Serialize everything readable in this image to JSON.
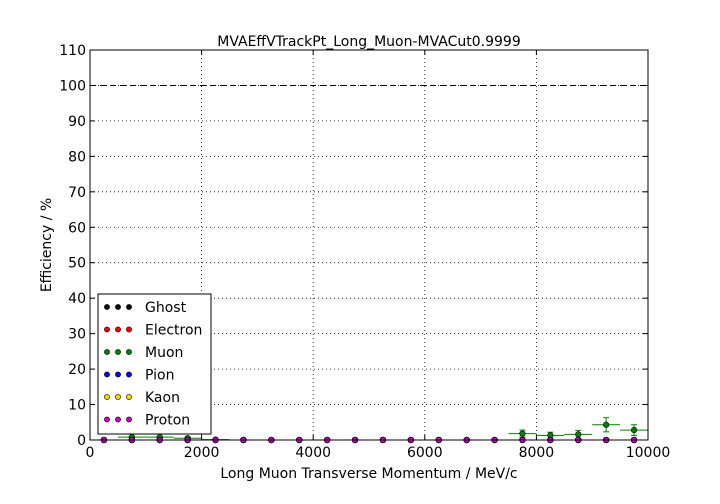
{
  "chart_data": {
    "type": "scatter",
    "title": "MVAEffVTrackPt_Long_Muon-MVACut0.9999",
    "xlabel": "Long Muon Transverse Momentum / MeV/c",
    "ylabel": "Efficiency / %",
    "xlim": [
      0,
      10000
    ],
    "ylim": [
      0,
      110
    ],
    "xticks": [
      0,
      2000,
      4000,
      6000,
      8000,
      10000
    ],
    "yticks": [
      0,
      10,
      20,
      30,
      40,
      50,
      60,
      70,
      80,
      90,
      100,
      110
    ],
    "grid": true,
    "reference_line": 100,
    "legend_position": "lower-left",
    "x": [
      250,
      750,
      1250,
      1750,
      2250,
      2750,
      3250,
      3750,
      4250,
      4750,
      5250,
      5750,
      6250,
      6750,
      7250,
      7750,
      8250,
      8750,
      9250,
      9750
    ],
    "x_error": 250,
    "series": [
      {
        "name": "Ghost",
        "color": "#000000",
        "values": [
          0,
          0,
          0,
          0,
          0,
          0,
          0,
          0,
          0,
          0,
          0,
          0,
          0,
          0,
          0,
          0,
          0,
          0,
          0,
          0
        ]
      },
      {
        "name": "Electron",
        "color": "#ff0000",
        "values": [
          0,
          0,
          0,
          0,
          0,
          0,
          0,
          0,
          0,
          0,
          0,
          0,
          0,
          0,
          0,
          0,
          0,
          0,
          0,
          0
        ]
      },
      {
        "name": "Muon",
        "color": "#008000",
        "values": [
          0,
          0.8,
          0.8,
          0.5,
          0.1,
          0,
          0,
          0,
          0,
          0,
          0,
          0,
          0,
          0,
          0,
          1.8,
          1.3,
          1.6,
          4.3,
          2.8
        ],
        "errors": [
          0,
          0.3,
          0.3,
          0.3,
          0.1,
          0,
          0,
          0,
          0,
          0,
          0,
          0,
          0,
          0,
          0,
          1.0,
          0.9,
          1.1,
          2.0,
          1.5
        ]
      },
      {
        "name": "Pion",
        "color": "#0000ff",
        "values": [
          0,
          0,
          0,
          0,
          0,
          0,
          0,
          0,
          0,
          0,
          0,
          0,
          0,
          0,
          0,
          0,
          0,
          0,
          0,
          0
        ]
      },
      {
        "name": "Kaon",
        "color": "#ffd700",
        "values": [
          0,
          0,
          0,
          0,
          0,
          0,
          0,
          0,
          0,
          0,
          0,
          0,
          0,
          0,
          0,
          0,
          0,
          0,
          0,
          0
        ]
      },
      {
        "name": "Proton",
        "color": "#cc00cc",
        "values": [
          0,
          0,
          0,
          0,
          0,
          0,
          0,
          0,
          0,
          0,
          0,
          0,
          0,
          0,
          0,
          0,
          0,
          0,
          0,
          0
        ]
      }
    ]
  }
}
